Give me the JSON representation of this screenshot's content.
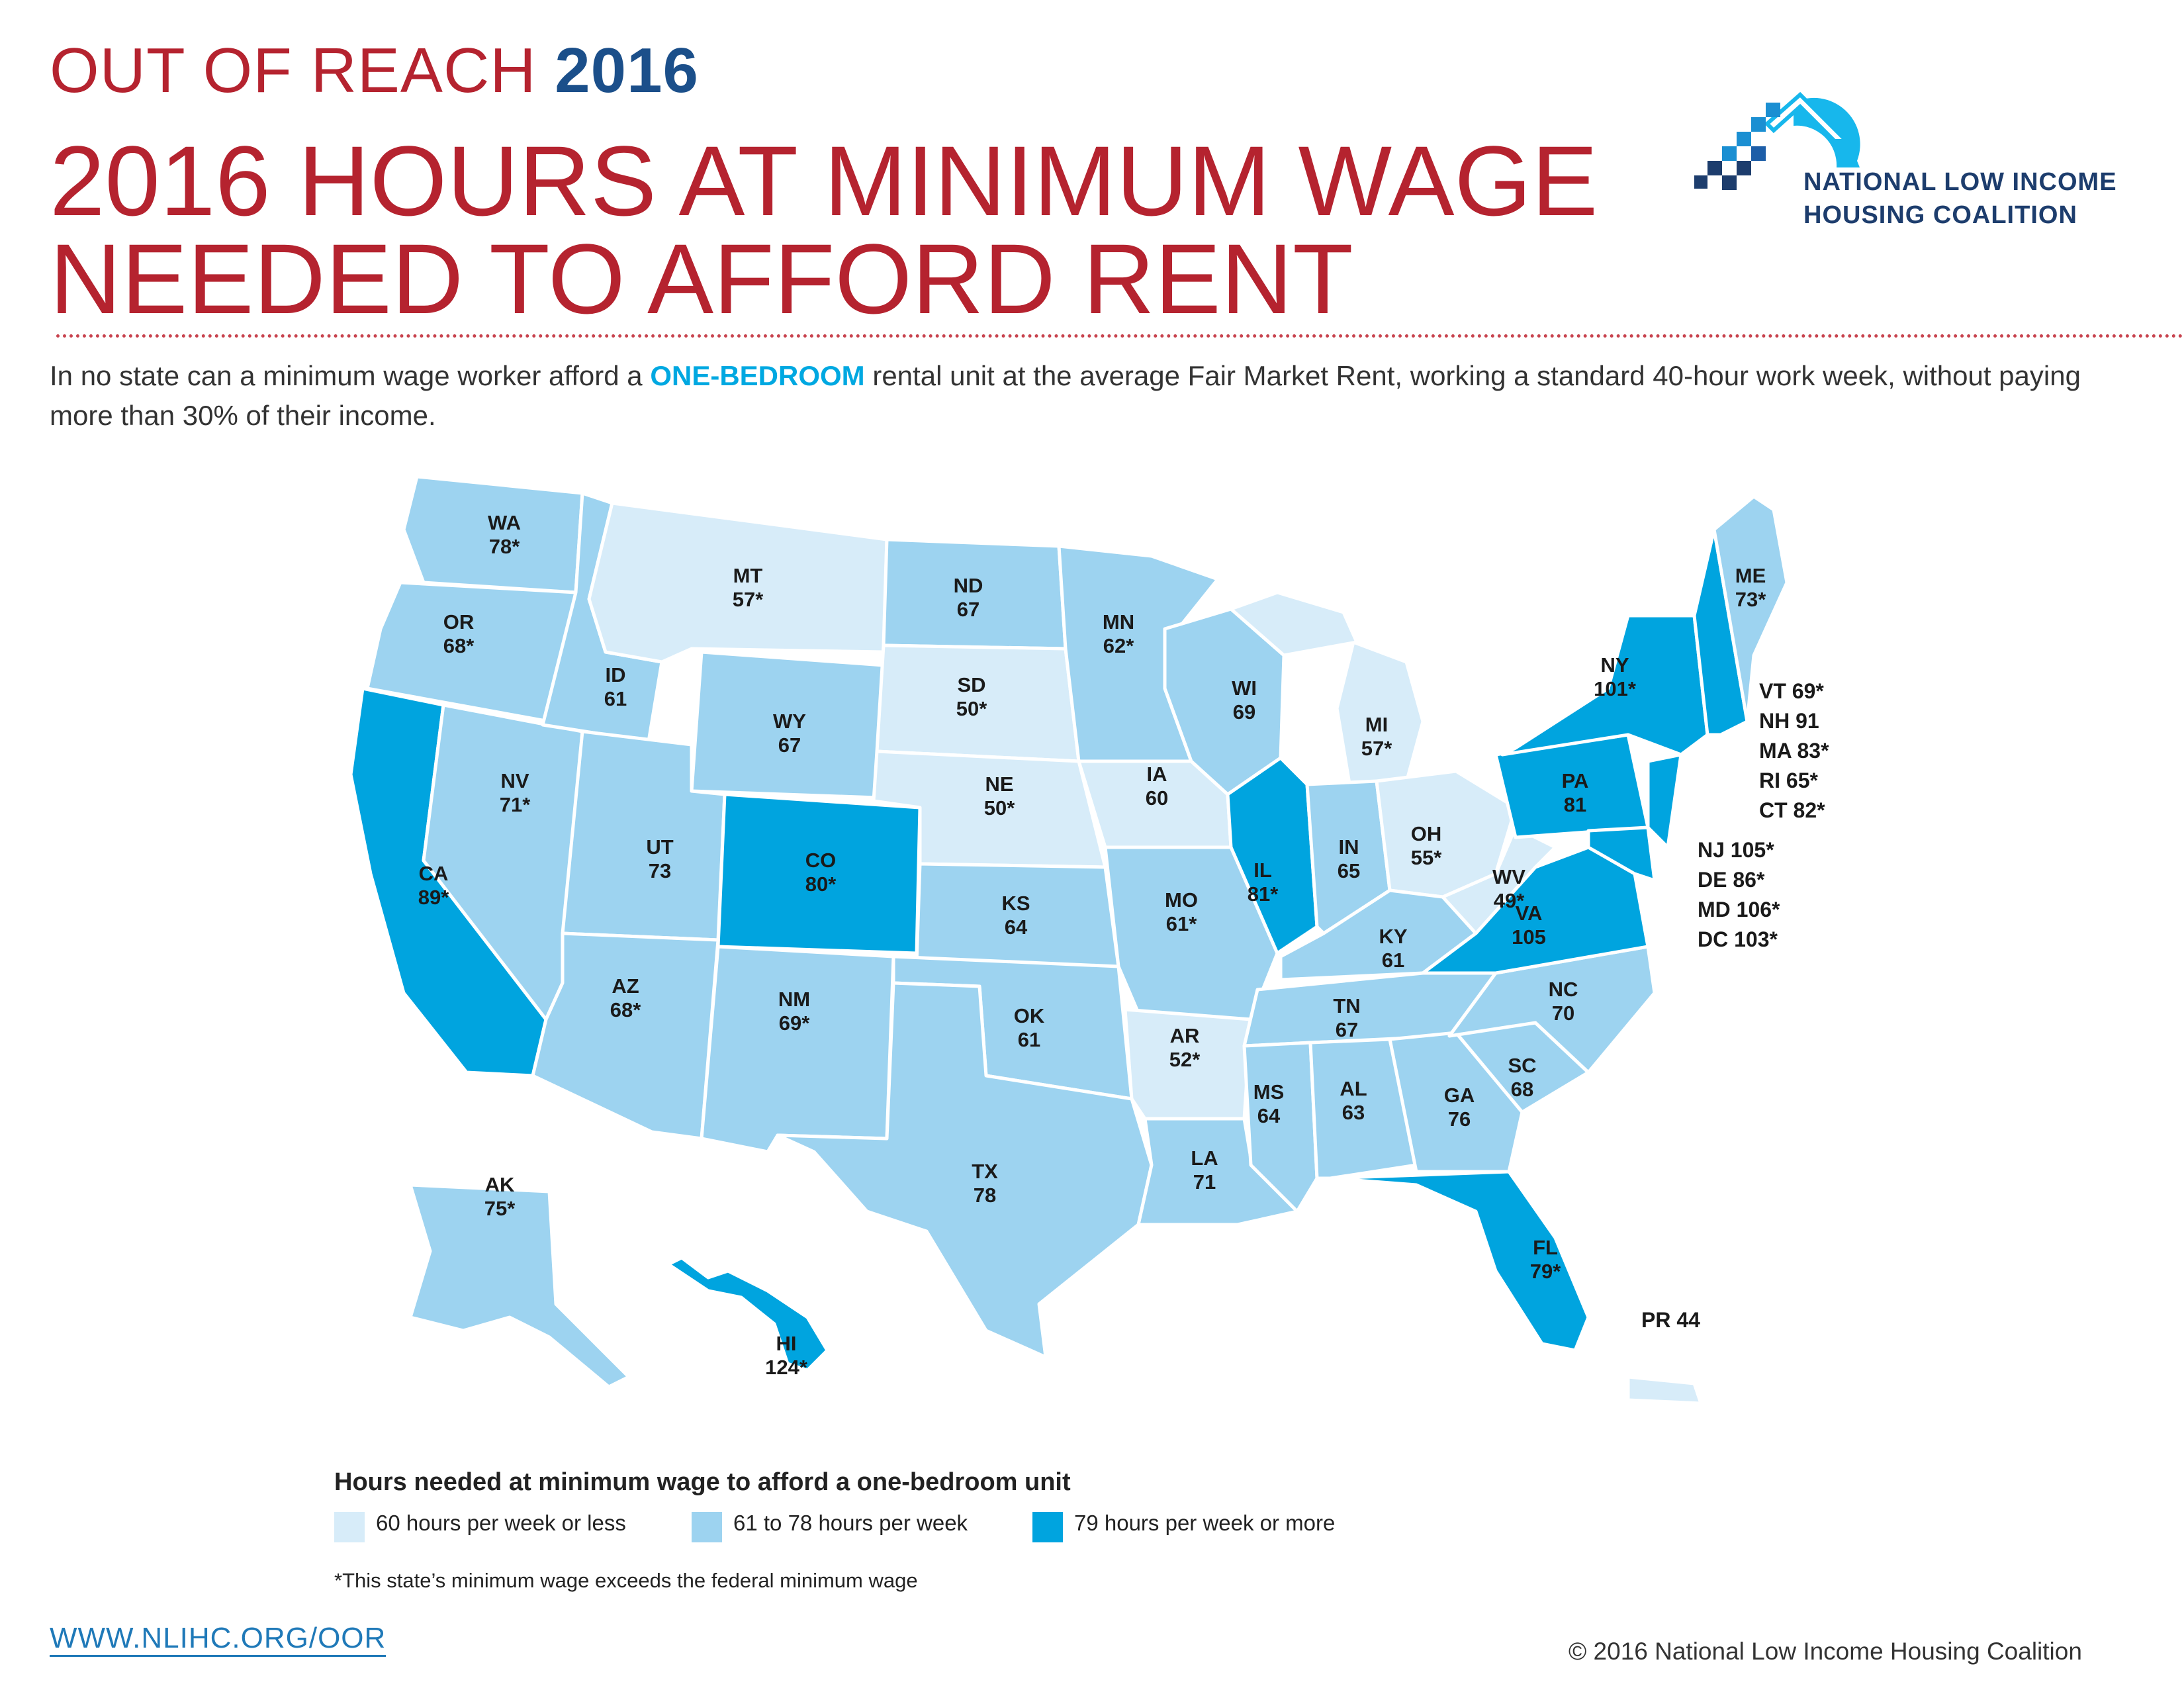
{
  "header": {
    "kicker_text": "OUT OF REACH",
    "kicker_year": "2016",
    "title_line1": "2016 HOURS AT MINIMUM WAGE",
    "title_line2": "NEEDED TO AFFORD RENT",
    "intro_part1": "In no state can a minimum wage worker afford a ",
    "intro_highlight": "ONE-BEDROOM",
    "intro_part2": " rental unit at the average Fair Market Rent, working a standard 40-hour work week, without paying more than 30% of their income."
  },
  "logo": {
    "line1": "NATIONAL LOW INCOME",
    "line2": "HOUSING COALITION",
    "icon": "house-stairs-logo"
  },
  "colors": {
    "low": "#d7ecf9",
    "mid": "#9dd3f0",
    "high": "#00a4df",
    "accent_red": "#b5232f",
    "accent_blue": "#1b4f8a"
  },
  "map": {
    "states": [
      {
        "code": "WA",
        "value": "78*"
      },
      {
        "code": "OR",
        "value": "68*"
      },
      {
        "code": "CA",
        "value": "89*"
      },
      {
        "code": "NV",
        "value": "71*"
      },
      {
        "code": "ID",
        "value": "61"
      },
      {
        "code": "MT",
        "value": "57*"
      },
      {
        "code": "WY",
        "value": "67"
      },
      {
        "code": "UT",
        "value": "73"
      },
      {
        "code": "AZ",
        "value": "68*"
      },
      {
        "code": "CO",
        "value": "80*"
      },
      {
        "code": "NM",
        "value": "69*"
      },
      {
        "code": "ND",
        "value": "67"
      },
      {
        "code": "SD",
        "value": "50*"
      },
      {
        "code": "NE",
        "value": "50*"
      },
      {
        "code": "KS",
        "value": "64"
      },
      {
        "code": "OK",
        "value": "61"
      },
      {
        "code": "TX",
        "value": "78"
      },
      {
        "code": "MN",
        "value": "62*"
      },
      {
        "code": "IA",
        "value": "60"
      },
      {
        "code": "MO",
        "value": "61*"
      },
      {
        "code": "AR",
        "value": "52*"
      },
      {
        "code": "LA",
        "value": "71"
      },
      {
        "code": "WI",
        "value": "69"
      },
      {
        "code": "IL",
        "value": "81*"
      },
      {
        "code": "MI",
        "value": "57*"
      },
      {
        "code": "IN",
        "value": "65"
      },
      {
        "code": "OH",
        "value": "55*"
      },
      {
        "code": "KY",
        "value": "61"
      },
      {
        "code": "TN",
        "value": "67"
      },
      {
        "code": "MS",
        "value": "64"
      },
      {
        "code": "AL",
        "value": "63"
      },
      {
        "code": "GA",
        "value": "76"
      },
      {
        "code": "FL",
        "value": "79*"
      },
      {
        "code": "SC",
        "value": "68"
      },
      {
        "code": "NC",
        "value": "70"
      },
      {
        "code": "VA",
        "value": "105"
      },
      {
        "code": "WV",
        "value": "49*"
      },
      {
        "code": "PA",
        "value": "81"
      },
      {
        "code": "NY",
        "value": "101*"
      },
      {
        "code": "ME",
        "value": "73*"
      },
      {
        "code": "AK",
        "value": "75*"
      },
      {
        "code": "HI",
        "value": "124*"
      }
    ],
    "callouts_ne": [
      "VT 69*",
      "NH 91",
      "MA 83*",
      "RI 65*",
      "CT 82*"
    ],
    "callouts_ma": [
      "NJ 105*",
      "DE 86*",
      "MD 106*",
      "DC 103*"
    ],
    "callout_pr": "PR 44"
  },
  "legend": {
    "title": "Hours needed at minimum wage to afford a one-bedroom unit",
    "items": [
      {
        "label": "60 hours per week or less"
      },
      {
        "label": "61 to 78 hours per week"
      },
      {
        "label": "79 hours per week or more"
      }
    ],
    "footnote": "*This state’s minimum wage exceeds the federal minimum wage"
  },
  "footer": {
    "url": "WWW.NLIHC.ORG/OOR",
    "copyright": "© 2016 National Low Income Housing Coalition"
  }
}
